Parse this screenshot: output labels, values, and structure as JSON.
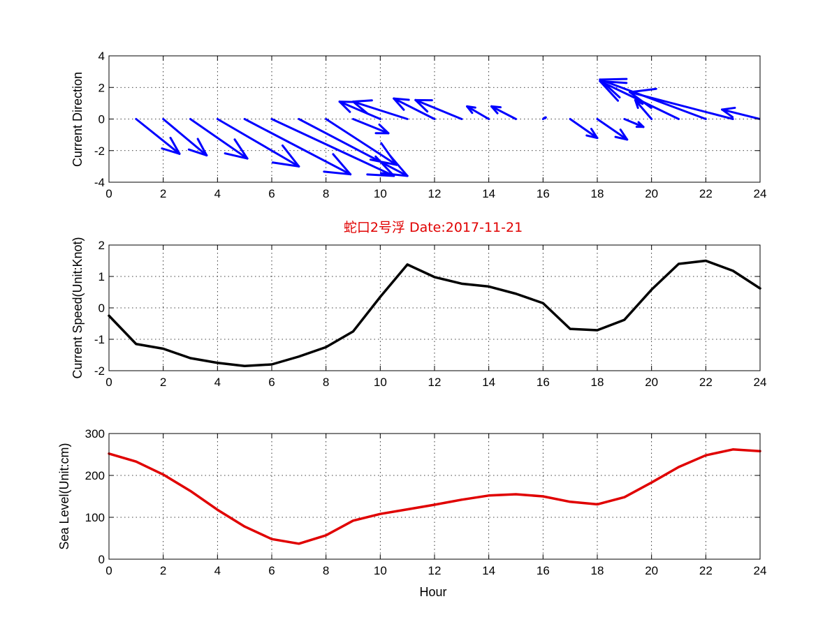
{
  "title": "蛇口2号浮   Date:2017-11-21",
  "colors": {
    "title": "#e00000",
    "arrows": "#0000ff",
    "speed": "#000000",
    "sealevel": "#e00000",
    "background": "#ffffff"
  },
  "chart_data": [
    {
      "type": "quiver",
      "ylabel": "Current Direction",
      "xlim": [
        0,
        24
      ],
      "ylim": [
        -4,
        4
      ],
      "xticks": [
        0,
        2,
        4,
        6,
        8,
        10,
        12,
        14,
        16,
        18,
        20,
        22,
        24
      ],
      "yticks": [
        -4,
        -2,
        0,
        2,
        4
      ],
      "grid": true,
      "x": [
        1,
        2,
        3,
        4,
        5,
        6,
        7,
        8,
        9,
        10,
        11,
        12,
        13,
        14,
        15,
        16,
        17,
        18,
        19,
        20,
        21,
        22,
        23,
        24
      ],
      "u": [
        1.6,
        1.6,
        2.1,
        3.0,
        3.9,
        4.5,
        4.0,
        2.6,
        1.3,
        -1.5,
        -2.0,
        -1.5,
        -1.7,
        -0.8,
        -0.9,
        0.1,
        1.0,
        1.1,
        0.7,
        -0.6,
        -2.9,
        -3.9,
        -3.8,
        -1.4
      ],
      "v": [
        -2.2,
        -2.3,
        -2.5,
        -3.0,
        -3.5,
        -3.6,
        -3.6,
        -2.9,
        -0.9,
        1.1,
        1.1,
        1.3,
        1.2,
        0.8,
        0.8,
        0.1,
        -1.2,
        -1.3,
        -0.5,
        1.2,
        2.4,
        2.5,
        1.7,
        0.6
      ]
    },
    {
      "type": "line",
      "ylabel": "Current Speed(Unit:Knot)",
      "xlim": [
        0,
        24
      ],
      "ylim": [
        -2,
        2
      ],
      "xticks": [
        0,
        2,
        4,
        6,
        8,
        10,
        12,
        14,
        16,
        18,
        20,
        22,
        24
      ],
      "yticks": [
        -2,
        -1,
        0,
        1,
        2
      ],
      "grid": true,
      "x": [
        0,
        1,
        2,
        3,
        4,
        5,
        6,
        7,
        8,
        9,
        10,
        11,
        12,
        13,
        14,
        15,
        16,
        17,
        18,
        19,
        20,
        21,
        22,
        23,
        24
      ],
      "y": [
        -0.25,
        -1.15,
        -1.3,
        -1.6,
        -1.75,
        -1.85,
        -1.8,
        -1.55,
        -1.25,
        -0.75,
        0.35,
        1.38,
        0.98,
        0.77,
        0.68,
        0.45,
        0.15,
        -0.67,
        -0.71,
        -0.38,
        0.58,
        1.4,
        1.5,
        1.18,
        0.62
      ]
    },
    {
      "type": "line",
      "xlabel": "Hour",
      "ylabel": "Sea Level(Unit:cm)",
      "xlim": [
        0,
        24
      ],
      "ylim": [
        0,
        300
      ],
      "xticks": [
        0,
        2,
        4,
        6,
        8,
        10,
        12,
        14,
        16,
        18,
        20,
        22,
        24
      ],
      "yticks": [
        0,
        100,
        200,
        300
      ],
      "grid": true,
      "x": [
        0,
        1,
        2,
        3,
        4,
        5,
        6,
        7,
        8,
        9,
        10,
        11,
        12,
        13,
        14,
        15,
        16,
        17,
        18,
        19,
        20,
        21,
        22,
        23,
        24
      ],
      "y": [
        252,
        233,
        202,
        163,
        118,
        78,
        48,
        37,
        57,
        92,
        108,
        119,
        130,
        142,
        152,
        155,
        150,
        137,
        131,
        148,
        183,
        220,
        248,
        262,
        258
      ]
    }
  ]
}
